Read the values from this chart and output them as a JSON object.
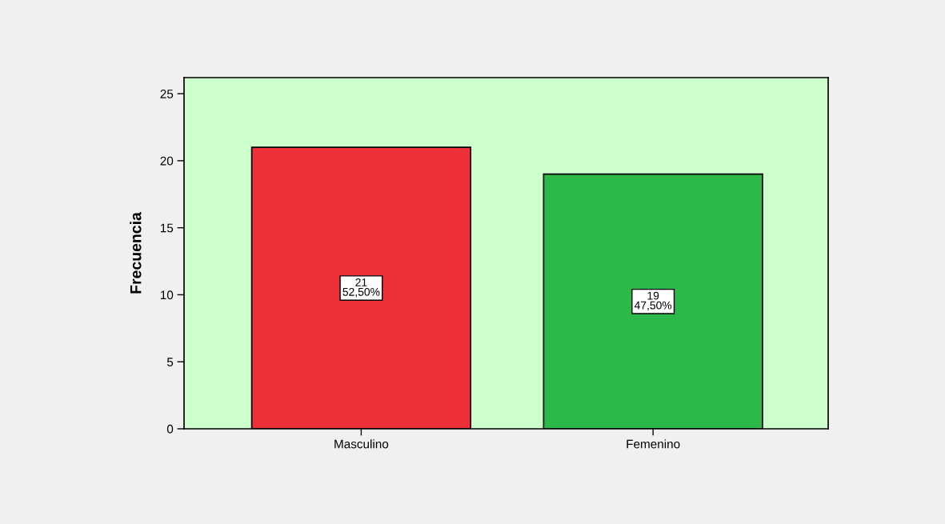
{
  "chart_data": {
    "type": "bar",
    "categories": [
      "Masculino",
      "Femenino"
    ],
    "values": [
      21,
      19
    ],
    "colors": [
      "#ee3139",
      "#2db84a"
    ],
    "value_labels": [
      "21\n52,50%",
      "19\n47,50%"
    ],
    "ylabel": "Frecuencia",
    "ylim": [
      0,
      26.2
    ],
    "yticks": [
      0,
      5,
      10,
      15,
      20,
      25
    ]
  }
}
